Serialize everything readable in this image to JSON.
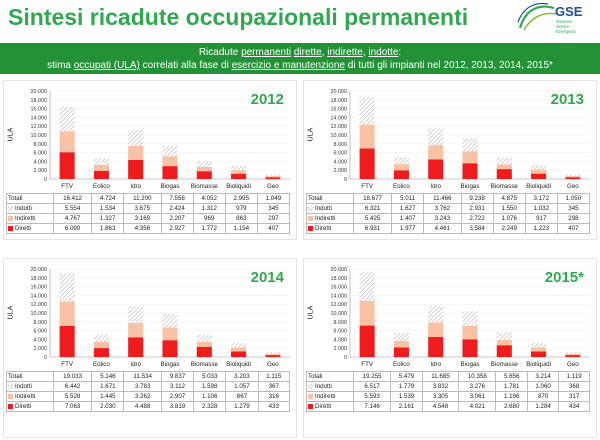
{
  "page": {
    "title": "Sintesi ricadute occupazionali permanenti",
    "logo_text": "GSE",
    "logo_sub": "Gestore Servizi Energetici"
  },
  "banner": {
    "line1_a": "Ricadute ",
    "line1_b": "permanenti",
    "line1_c": " ",
    "line1_d": "dirette",
    "line1_e": ", ",
    "line1_f": "indirette",
    "line1_g": ", ",
    "line1_h": "indotte",
    "line1_i": ":",
    "line2_a": "stima ",
    "line2_b": "occupati (ULA)",
    "line2_c": " correlati alla fase di ",
    "line2_d": "esercizio e manutenzione",
    "line2_e": "  di tutti gli impianti nel 2012, 2013, 2014, 2015*"
  },
  "colors": {
    "diretti": "#ee1c1c",
    "indiretti": "#f8c3a4",
    "indotti": "#bdbdbd",
    "accent": "#2fa84f",
    "banner": "#239236"
  },
  "chart_data": [
    {
      "type": "bar",
      "title": "2012",
      "ylabel": "ULA",
      "ylim": [
        0,
        20000
      ],
      "yticks": [
        "0",
        "2.000",
        "4.000",
        "6.000",
        "8.000",
        "10.000",
        "12.000",
        "14.000",
        "16.000",
        "18.000",
        "20.000"
      ],
      "categories": [
        "FTV",
        "Eolico",
        "Idro",
        "Biogas",
        "Biomasse",
        "Bioliquidi",
        "Geo"
      ],
      "series": [
        {
          "name": "Diretti",
          "values": [
            6090,
            1863,
            4356,
            2927,
            1772,
            1154,
            407
          ]
        },
        {
          "name": "Indiretti",
          "values": [
            4767,
            1327,
            3169,
            2207,
            969,
            863,
            297
          ]
        },
        {
          "name": "Indotti",
          "values": [
            5554,
            1534,
            3675,
            2424,
            1312,
            979,
            345
          ]
        }
      ],
      "totals": [
        16412,
        4724,
        11200,
        7558,
        4052,
        2995,
        1049
      ],
      "table": {
        "total_label": "Totali",
        "rows": [
          {
            "label": "Indotti",
            "key": "indotti",
            "cells": [
              "5.554",
              "1.534",
              "3.675",
              "2.424",
              "1.312",
              "979",
              "345"
            ]
          },
          {
            "label": "Indiretti",
            "key": "indiretti",
            "cells": [
              "4.767",
              "1.327",
              "3.169",
              "2.207",
              "969",
              "863",
              "297"
            ]
          },
          {
            "label": "Diretti",
            "key": "diretti",
            "cells": [
              "6.090",
              "1.863",
              "4.356",
              "2.927",
              "1.772",
              "1.154",
              "407"
            ]
          }
        ],
        "totals": [
          "16.412",
          "4.724",
          "11.200",
          "7.558",
          "4.052",
          "2.995",
          "1.049"
        ]
      }
    },
    {
      "type": "bar",
      "title": "2013",
      "ylabel": "ULA",
      "ylim": [
        0,
        20000
      ],
      "yticks": [
        "0",
        "2.000",
        "4.000",
        "6.000",
        "8.000",
        "10.000",
        "12.000",
        "14.000",
        "16.000",
        "18.000",
        "20.000"
      ],
      "categories": [
        "FTV",
        "Eolico",
        "Idro",
        "Biogas",
        "Biomasse",
        "Bioliquidi",
        "Geo"
      ],
      "series": [
        {
          "name": "Diretti",
          "values": [
            6931,
            1977,
            4461,
            3584,
            2249,
            1223,
            407
          ]
        },
        {
          "name": "Indiretti",
          "values": [
            5425,
            1407,
            3243,
            2722,
            1076,
            917,
            298
          ]
        },
        {
          "name": "Indotti",
          "values": [
            6321,
            1627,
            3762,
            2931,
            1550,
            1032,
            345
          ]
        }
      ],
      "totals": [
        18677,
        5011,
        11466,
        9238,
        4875,
        3172,
        1050
      ],
      "table": {
        "total_label": "Totali",
        "rows": [
          {
            "label": "Indotti",
            "key": "indotti",
            "cells": [
              "6.321",
              "1.627",
              "3.762",
              "2.931",
              "1.550",
              "1.032",
              "345"
            ]
          },
          {
            "label": "Indiretti",
            "key": "indiretti",
            "cells": [
              "5.425",
              "1.407",
              "3.243",
              "2.722",
              "1.076",
              "917",
              "298"
            ]
          },
          {
            "label": "Diretti",
            "key": "diretti",
            "cells": [
              "6.931",
              "1.977",
              "4.461",
              "3.584",
              "2.249",
              "1.223",
              "407"
            ]
          }
        ],
        "totals": [
          "18.677",
          "5.011",
          "11.466",
          "9.238",
          "4.875",
          "3.172",
          "1.050"
        ]
      }
    },
    {
      "type": "bar",
      "title": "2014",
      "ylabel": "ULA",
      "ylim": [
        0,
        20000
      ],
      "yticks": [
        "0",
        "2.000",
        "4.000",
        "6.000",
        "8.000",
        "10.000",
        "12.000",
        "14.000",
        "16.000",
        "18.000",
        "20.000"
      ],
      "categories": [
        "FTV",
        "Eolico",
        "Idro",
        "Biogas",
        "Biomasse",
        "Bioliquidi",
        "Geo"
      ],
      "series": [
        {
          "name": "Diretti",
          "values": [
            7063,
            2030,
            4488,
            3819,
            2328,
            1279,
            433
          ]
        },
        {
          "name": "Indiretti",
          "values": [
            5528,
            1445,
            3262,
            2907,
            1106,
            867,
            316
          ]
        },
        {
          "name": "Indotti",
          "values": [
            6442,
            1671,
            3783,
            3112,
            1598,
            1057,
            367
          ]
        }
      ],
      "totals": [
        19033,
        5146,
        11534,
        9837,
        5033,
        3203,
        1115
      ],
      "table": {
        "total_label": "Totali",
        "rows": [
          {
            "label": "Indotti",
            "key": "indotti",
            "cells": [
              "6.442",
              "1.671",
              "3.783",
              "3.112",
              "1.598",
              "1.057",
              "367"
            ]
          },
          {
            "label": "Indiretti",
            "key": "indiretti",
            "cells": [
              "5.528",
              "1.445",
              "3.262",
              "2.907",
              "1.106",
              "867",
              "316"
            ]
          },
          {
            "label": "Diretti",
            "key": "diretti",
            "cells": [
              "7.063",
              "2.030",
              "4.488",
              "3.819",
              "2.328",
              "1.279",
              "433"
            ]
          }
        ],
        "totals": [
          "19.033",
          "5.146",
          "11.534",
          "9.837",
          "5.033",
          "3.203",
          "1.115"
        ]
      }
    },
    {
      "type": "bar",
      "title": "2015*",
      "ylabel": "ULA",
      "ylim": [
        0,
        20000
      ],
      "yticks": [
        "0",
        "2.000",
        "4.000",
        "6.000",
        "8.000",
        "10.000",
        "12.000",
        "14.000",
        "16.000",
        "18.000",
        "20.000"
      ],
      "categories": [
        "FTV",
        "Eolico",
        "Idro",
        "Biogas",
        "Biomasse",
        "Bioliquidi",
        "Geo"
      ],
      "series": [
        {
          "name": "Diretti",
          "values": [
            7146,
            2161,
            4548,
            4021,
            2680,
            1284,
            434
          ]
        },
        {
          "name": "Indiretti",
          "values": [
            5593,
            1539,
            3305,
            3061,
            1196,
            870,
            317
          ]
        },
        {
          "name": "Indotti",
          "values": [
            6517,
            1779,
            3832,
            3276,
            1781,
            1060,
            368
          ]
        }
      ],
      "totals": [
        19255,
        5479,
        11685,
        10358,
        5656,
        3214,
        1119
      ],
      "table": {
        "total_label": "Totali",
        "rows": [
          {
            "label": "Indotti",
            "key": "indotti",
            "cells": [
              "6.517",
              "1.779",
              "3.832",
              "3.276",
              "1.781",
              "1.060",
              "368"
            ]
          },
          {
            "label": "Indiretti",
            "key": "indiretti",
            "cells": [
              "5.593",
              "1.539",
              "3.305",
              "3.061",
              "1.196",
              "870",
              "317"
            ]
          },
          {
            "label": "Diretti",
            "key": "diretti",
            "cells": [
              "7.146",
              "2.161",
              "4.548",
              "4.021",
              "2.680",
              "1.284",
              "434"
            ]
          }
        ],
        "totals": [
          "19.255",
          "5.479",
          "11.685",
          "10.358",
          "5.656",
          "3.214",
          "1.119"
        ]
      }
    }
  ]
}
